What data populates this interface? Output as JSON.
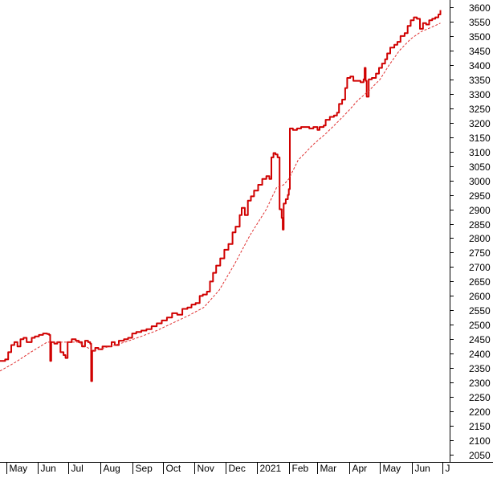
{
  "chart_data": {
    "type": "line",
    "title": "",
    "xlabel": "",
    "ylabel": "",
    "ylim": [
      2025,
      3625
    ],
    "y_ticks": [
      2050,
      2100,
      2150,
      2200,
      2250,
      2300,
      2350,
      2400,
      2450,
      2500,
      2550,
      2600,
      2650,
      2700,
      2750,
      2800,
      2850,
      2900,
      2950,
      3000,
      3050,
      3100,
      3150,
      3200,
      3250,
      3300,
      3350,
      3400,
      3450,
      3500,
      3550,
      3600
    ],
    "x_range": [
      "2020-04-25",
      "2021-07-08"
    ],
    "x_ticks": [
      {
        "label": "May",
        "date": "2020-05-01"
      },
      {
        "label": "Jun",
        "date": "2020-06-01"
      },
      {
        "label": "Jul",
        "date": "2020-07-01"
      },
      {
        "label": "Aug",
        "date": "2020-08-01"
      },
      {
        "label": "Sep",
        "date": "2020-09-01"
      },
      {
        "label": "Oct",
        "date": "2020-10-01"
      },
      {
        "label": "Nov",
        "date": "2020-11-01"
      },
      {
        "label": "Dec",
        "date": "2020-12-01"
      },
      {
        "label": "2021",
        "date": "2021-01-01"
      },
      {
        "label": "Feb",
        "date": "2021-02-01"
      },
      {
        "label": "Mar",
        "date": "2021-03-01"
      },
      {
        "label": "Apr",
        "date": "2021-04-01"
      },
      {
        "label": "May",
        "date": "2021-05-01"
      },
      {
        "label": "Jun",
        "date": "2021-06-01"
      },
      {
        "label": "J",
        "date": "2021-07-01"
      }
    ],
    "colors": {
      "price": "#d00000",
      "average": "#e03030",
      "axis": "#000000"
    },
    "grid": false,
    "legend": "none",
    "series": [
      {
        "style": "solid",
        "points": [
          [
            "2020-04-25",
            2375
          ],
          [
            "2020-04-30",
            2380
          ],
          [
            "2020-05-03",
            2405
          ],
          [
            "2020-05-06",
            2430
          ],
          [
            "2020-05-09",
            2440
          ],
          [
            "2020-05-12",
            2425
          ],
          [
            "2020-05-15",
            2450
          ],
          [
            "2020-05-18",
            2455
          ],
          [
            "2020-05-21",
            2440
          ],
          [
            "2020-05-26",
            2455
          ],
          [
            "2020-05-29",
            2460
          ],
          [
            "2020-06-02",
            2465
          ],
          [
            "2020-06-06",
            2470
          ],
          [
            "2020-06-10",
            2468
          ],
          [
            "2020-06-12",
            2465
          ],
          [
            "2020-06-13",
            2375
          ],
          [
            "2020-06-14",
            2440
          ],
          [
            "2020-06-17",
            2435
          ],
          [
            "2020-06-20",
            2440
          ],
          [
            "2020-06-23",
            2405
          ],
          [
            "2020-06-26",
            2395
          ],
          [
            "2020-06-28",
            2385
          ],
          [
            "2020-06-30",
            2440
          ],
          [
            "2020-07-04",
            2450
          ],
          [
            "2020-07-08",
            2445
          ],
          [
            "2020-07-11",
            2440
          ],
          [
            "2020-07-14",
            2425
          ],
          [
            "2020-07-17",
            2445
          ],
          [
            "2020-07-20",
            2440
          ],
          [
            "2020-07-22",
            2435
          ],
          [
            "2020-07-23",
            2305
          ],
          [
            "2020-07-24",
            2410
          ],
          [
            "2020-07-27",
            2420
          ],
          [
            "2020-07-30",
            2415
          ],
          [
            "2020-08-03",
            2425
          ],
          [
            "2020-08-08",
            2425
          ],
          [
            "2020-08-12",
            2440
          ],
          [
            "2020-08-15",
            2430
          ],
          [
            "2020-08-19",
            2445
          ],
          [
            "2020-08-24",
            2450
          ],
          [
            "2020-08-28",
            2455
          ],
          [
            "2020-09-01",
            2470
          ],
          [
            "2020-09-05",
            2475
          ],
          [
            "2020-09-10",
            2480
          ],
          [
            "2020-09-15",
            2485
          ],
          [
            "2020-09-20",
            2495
          ],
          [
            "2020-09-25",
            2505
          ],
          [
            "2020-09-30",
            2515
          ],
          [
            "2020-10-05",
            2525
          ],
          [
            "2020-10-10",
            2540
          ],
          [
            "2020-10-15",
            2535
          ],
          [
            "2020-10-20",
            2555
          ],
          [
            "2020-10-25",
            2560
          ],
          [
            "2020-10-29",
            2570
          ],
          [
            "2020-11-02",
            2575
          ],
          [
            "2020-11-06",
            2600
          ],
          [
            "2020-11-09",
            2605
          ],
          [
            "2020-11-13",
            2615
          ],
          [
            "2020-11-16",
            2650
          ],
          [
            "2020-11-19",
            2680
          ],
          [
            "2020-11-22",
            2705
          ],
          [
            "2020-11-26",
            2730
          ],
          [
            "2020-11-30",
            2760
          ],
          [
            "2020-12-04",
            2780
          ],
          [
            "2020-12-08",
            2820
          ],
          [
            "2020-12-11",
            2840
          ],
          [
            "2020-12-15",
            2880
          ],
          [
            "2020-12-17",
            2905
          ],
          [
            "2020-12-20",
            2880
          ],
          [
            "2020-12-23",
            2930
          ],
          [
            "2020-12-26",
            2945
          ],
          [
            "2020-12-29",
            2965
          ],
          [
            "2021-01-02",
            2985
          ],
          [
            "2021-01-06",
            3005
          ],
          [
            "2021-01-10",
            3015
          ],
          [
            "2021-01-13",
            3005
          ],
          [
            "2021-01-15",
            3080
          ],
          [
            "2021-01-17",
            3095
          ],
          [
            "2021-01-19",
            3090
          ],
          [
            "2021-01-21",
            3080
          ],
          [
            "2021-01-23",
            2900
          ],
          [
            "2021-01-25",
            2870
          ],
          [
            "2021-01-26",
            2830
          ],
          [
            "2021-01-27",
            2920
          ],
          [
            "2021-01-29",
            2935
          ],
          [
            "2021-01-31",
            2950
          ],
          [
            "2021-02-01",
            2970
          ],
          [
            "2021-02-02",
            3180
          ],
          [
            "2021-02-05",
            3175
          ],
          [
            "2021-02-09",
            3180
          ],
          [
            "2021-02-13",
            3185
          ],
          [
            "2021-02-17",
            3185
          ],
          [
            "2021-02-21",
            3180
          ],
          [
            "2021-02-25",
            3185
          ],
          [
            "2021-03-01",
            3175
          ],
          [
            "2021-03-03",
            3185
          ],
          [
            "2021-03-07",
            3190
          ],
          [
            "2021-03-09",
            3210
          ],
          [
            "2021-03-13",
            3220
          ],
          [
            "2021-03-17",
            3225
          ],
          [
            "2021-03-20",
            3235
          ],
          [
            "2021-03-22",
            3265
          ],
          [
            "2021-03-25",
            3280
          ],
          [
            "2021-03-28",
            3320
          ],
          [
            "2021-03-30",
            3355
          ],
          [
            "2021-04-02",
            3360
          ],
          [
            "2021-04-05",
            3345
          ],
          [
            "2021-04-09",
            3345
          ],
          [
            "2021-04-12",
            3340
          ],
          [
            "2021-04-15",
            3350
          ],
          [
            "2021-04-16",
            3390
          ],
          [
            "2021-04-17",
            3345
          ],
          [
            "2021-04-18",
            3290
          ],
          [
            "2021-04-20",
            3350
          ],
          [
            "2021-04-23",
            3355
          ],
          [
            "2021-04-27",
            3370
          ],
          [
            "2021-04-30",
            3390
          ],
          [
            "2021-05-03",
            3405
          ],
          [
            "2021-05-06",
            3420
          ],
          [
            "2021-05-08",
            3440
          ],
          [
            "2021-05-11",
            3460
          ],
          [
            "2021-05-15",
            3470
          ],
          [
            "2021-05-18",
            3480
          ],
          [
            "2021-05-21",
            3500
          ],
          [
            "2021-05-25",
            3510
          ],
          [
            "2021-05-28",
            3535
          ],
          [
            "2021-05-31",
            3555
          ],
          [
            "2021-06-03",
            3565
          ],
          [
            "2021-06-06",
            3560
          ],
          [
            "2021-06-09",
            3525
          ],
          [
            "2021-06-12",
            3545
          ],
          [
            "2021-06-15",
            3540
          ],
          [
            "2021-06-18",
            3555
          ],
          [
            "2021-06-21",
            3560
          ],
          [
            "2021-06-24",
            3565
          ],
          [
            "2021-06-27",
            3575
          ],
          [
            "2021-06-29",
            3590
          ]
        ]
      },
      {
        "style": "dashed",
        "points": [
          [
            "2020-04-25",
            2340
          ],
          [
            "2020-05-10",
            2370
          ],
          [
            "2020-05-25",
            2405
          ],
          [
            "2020-06-10",
            2440
          ],
          [
            "2020-06-25",
            2440
          ],
          [
            "2020-07-10",
            2440
          ],
          [
            "2020-07-25",
            2410
          ],
          [
            "2020-08-10",
            2425
          ],
          [
            "2020-08-25",
            2440
          ],
          [
            "2020-09-10",
            2460
          ],
          [
            "2020-09-25",
            2480
          ],
          [
            "2020-10-10",
            2505
          ],
          [
            "2020-10-25",
            2530
          ],
          [
            "2020-11-10",
            2560
          ],
          [
            "2020-11-25",
            2620
          ],
          [
            "2020-12-10",
            2710
          ],
          [
            "2020-12-25",
            2810
          ],
          [
            "2021-01-10",
            2900
          ],
          [
            "2021-01-20",
            2975
          ],
          [
            "2021-01-27",
            2985
          ],
          [
            "2021-02-01",
            3005
          ],
          [
            "2021-02-10",
            3070
          ],
          [
            "2021-02-25",
            3125
          ],
          [
            "2021-03-10",
            3165
          ],
          [
            "2021-03-20",
            3200
          ],
          [
            "2021-03-31",
            3240
          ],
          [
            "2021-04-10",
            3280
          ],
          [
            "2021-04-20",
            3310
          ],
          [
            "2021-05-01",
            3350
          ],
          [
            "2021-05-10",
            3400
          ],
          [
            "2021-05-20",
            3450
          ],
          [
            "2021-05-31",
            3490
          ],
          [
            "2021-06-10",
            3515
          ],
          [
            "2021-06-20",
            3530
          ],
          [
            "2021-06-29",
            3545
          ]
        ]
      }
    ]
  }
}
